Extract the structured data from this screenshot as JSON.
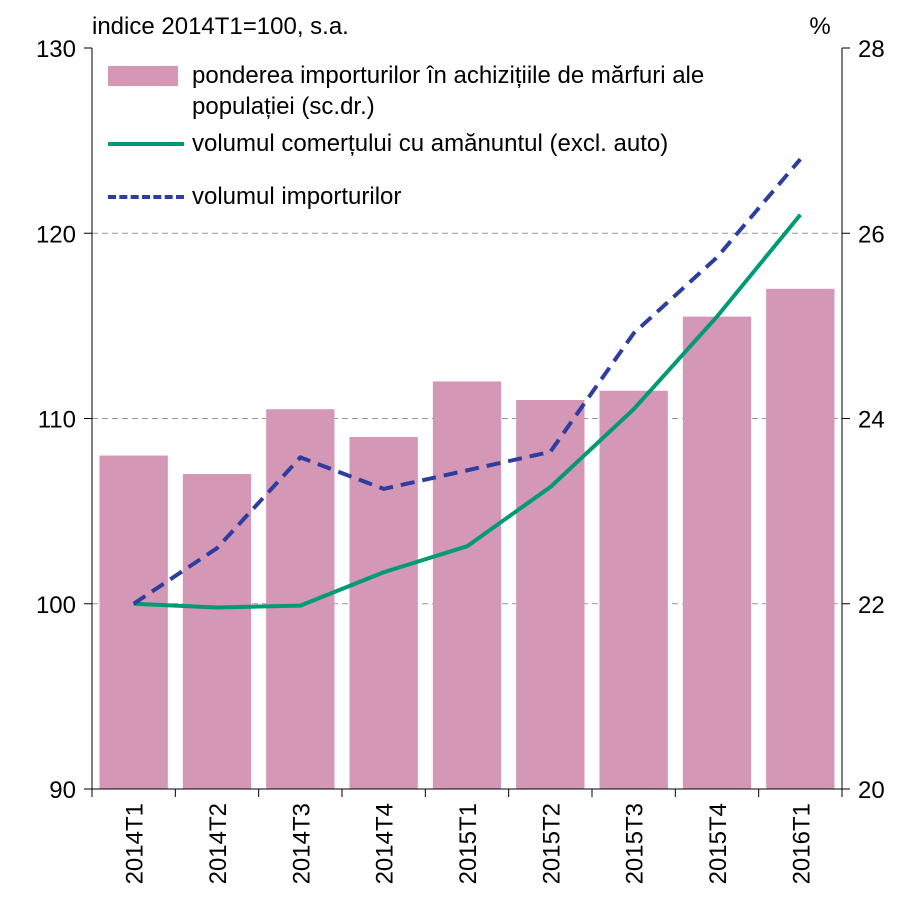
{
  "chart_data": {
    "type": "bar-line",
    "subtitle_left": "indice 2014T1=100, s.a.",
    "subtitle_right": "%",
    "categories": [
      "2014T1",
      "2014T2",
      "2014T3",
      "2014T4",
      "2015T1",
      "2015T2",
      "2015T3",
      "2015T4",
      "2016T1"
    ],
    "series": [
      {
        "name": "ponderea importurilor în achizițiile de mărfuri ale populației (sc.dr.)",
        "type": "bar",
        "axis": "y2",
        "color": "#d497b6",
        "values": [
          23.6,
          23.4,
          24.1,
          23.8,
          24.4,
          24.2,
          24.3,
          25.1,
          25.4
        ]
      },
      {
        "name": "volumul comerțului cu amănuntul (excl. auto)",
        "type": "line",
        "color": "#009a74",
        "dash": false,
        "values": [
          100,
          99.8,
          99.9,
          101.7,
          103.1,
          106.3,
          110.5,
          115.5,
          121
        ]
      },
      {
        "name": "volumul importurilor",
        "type": "line",
        "color": "#2e3d9e",
        "dash": true,
        "values": [
          100,
          103,
          107.9,
          106.2,
          107.2,
          108.2,
          114.6,
          118.7,
          124
        ]
      }
    ],
    "ylim": [
      90,
      130
    ],
    "yticks": [
      90,
      100,
      110,
      120,
      130
    ],
    "y2lim": [
      20,
      28
    ],
    "y2ticks": [
      20,
      22,
      24,
      26,
      28
    ],
    "grid": true,
    "legend": "top-left"
  }
}
